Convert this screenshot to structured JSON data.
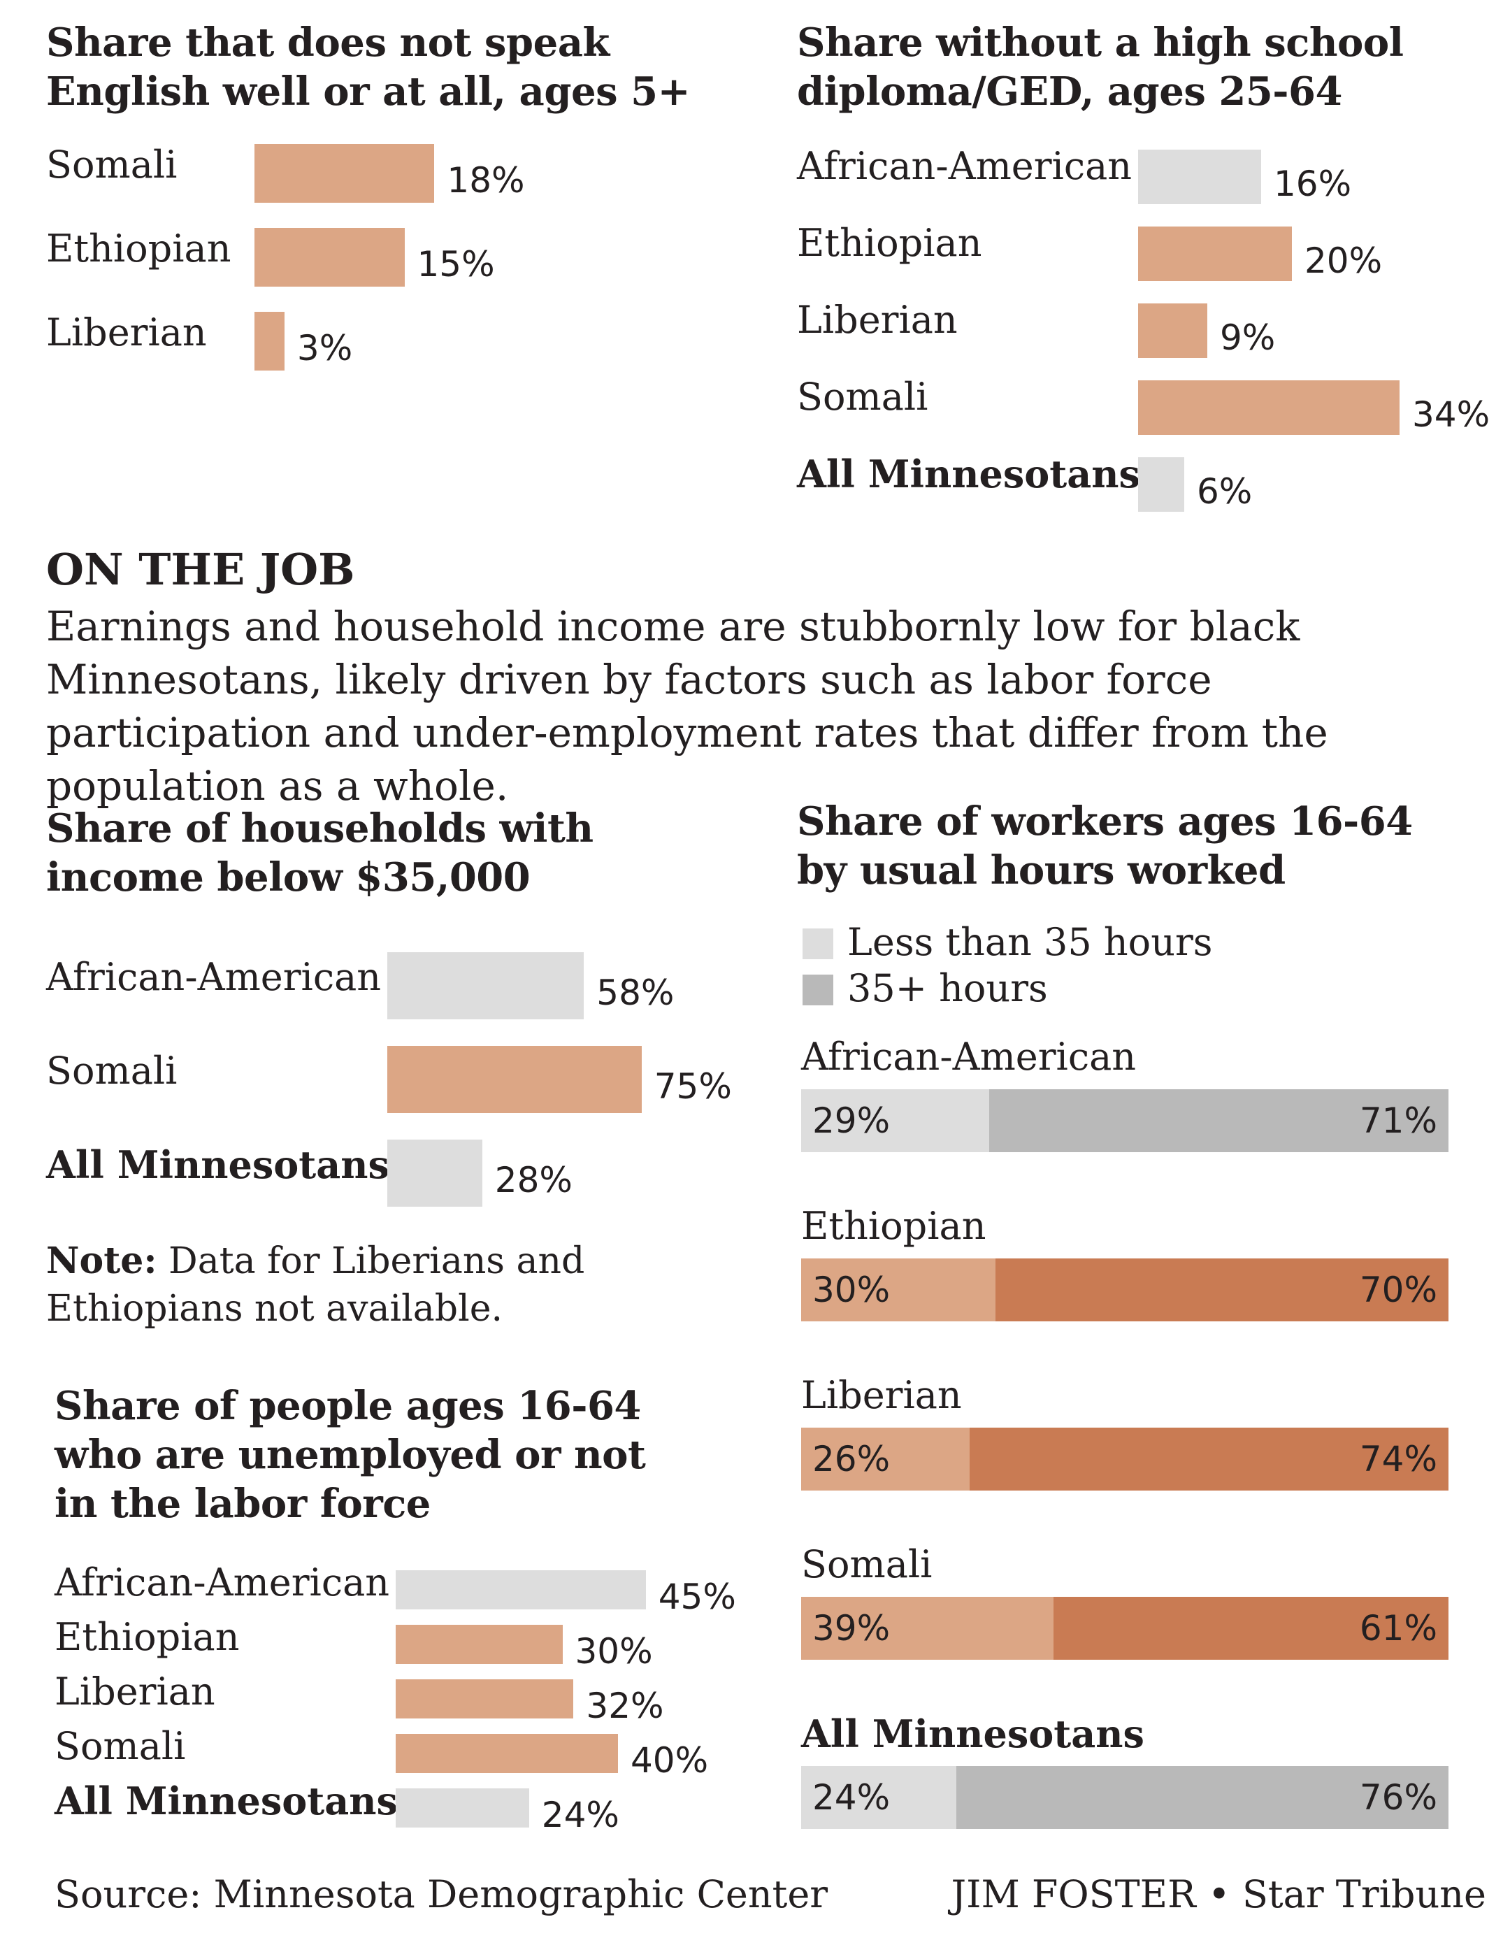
{
  "colors": {
    "orange_light": "#dca685",
    "orange_dark": "#c97b53",
    "gray_light": "#dddddd",
    "gray_dark": "#b9b9b9",
    "text": "#231f20"
  },
  "section": {
    "heading": "ON THE JOB",
    "intro": "Earnings and household income are stubbornly low for black Minnesotans, likely driven by factors such as labor force participation and under-employment rates that differ from the population as a whole."
  },
  "note": {
    "label": "Note:",
    "text": " Data for Liberians and Ethiopians not available."
  },
  "footer": {
    "source": "Source: Minnesota Demographic Center",
    "credit": "JIM FOSTER • Star Tribune"
  },
  "chart_data": [
    {
      "id": "english",
      "type": "bar",
      "title": "Share that does not speak\nEnglish well or at all, ages 5+",
      "categories": [
        "Somali",
        "Ethiopian",
        "Liberian"
      ],
      "values": [
        18,
        15,
        3
      ],
      "labels": [
        "18%",
        "15%",
        "3%"
      ],
      "unit": "%"
    },
    {
      "id": "diploma",
      "type": "bar",
      "title": "Share without a high school\ndiploma/GED, ages 25-64",
      "categories": [
        "African-American",
        "Ethiopian",
        "Liberian",
        "Somali",
        "All Minnesotans"
      ],
      "values": [
        16,
        20,
        9,
        34,
        6
      ],
      "labels": [
        "16%",
        "20%",
        "9%",
        "34%",
        "6%"
      ],
      "unit": "%"
    },
    {
      "id": "income",
      "type": "bar",
      "title": "Share of households with\nincome below $35,000",
      "categories": [
        "African-American",
        "Somali",
        "All Minnesotans"
      ],
      "values": [
        58,
        75,
        28
      ],
      "labels": [
        "58%",
        "75%",
        "28%"
      ],
      "unit": "%"
    },
    {
      "id": "unemployed",
      "type": "bar",
      "title": "Share of people ages 16-64\nwho are unemployed or not\nin the labor force",
      "categories": [
        "African-American",
        "Ethiopian",
        "Liberian",
        "Somali",
        "All Minnesotans"
      ],
      "values": [
        45,
        30,
        32,
        40,
        24
      ],
      "labels": [
        "45%",
        "30%",
        "32%",
        "40%",
        "24%"
      ],
      "unit": "%"
    },
    {
      "id": "hours",
      "type": "bar",
      "stacked": true,
      "title": "Share of workers ages 16-64\nby usual hours worked",
      "categories": [
        "African-American",
        "Ethiopian",
        "Liberian",
        "Somali",
        "All Minnesotans"
      ],
      "series": [
        {
          "name": "Less than 35 hours",
          "values": [
            29,
            30,
            26,
            39,
            24
          ],
          "labels": [
            "29%",
            "30%",
            "26%",
            "39%",
            "24%"
          ]
        },
        {
          "name": "35+ hours",
          "values": [
            71,
            70,
            74,
            61,
            76
          ],
          "labels": [
            "71%",
            "70%",
            "74%",
            "61%",
            "76%"
          ]
        }
      ],
      "unit": "%"
    }
  ]
}
